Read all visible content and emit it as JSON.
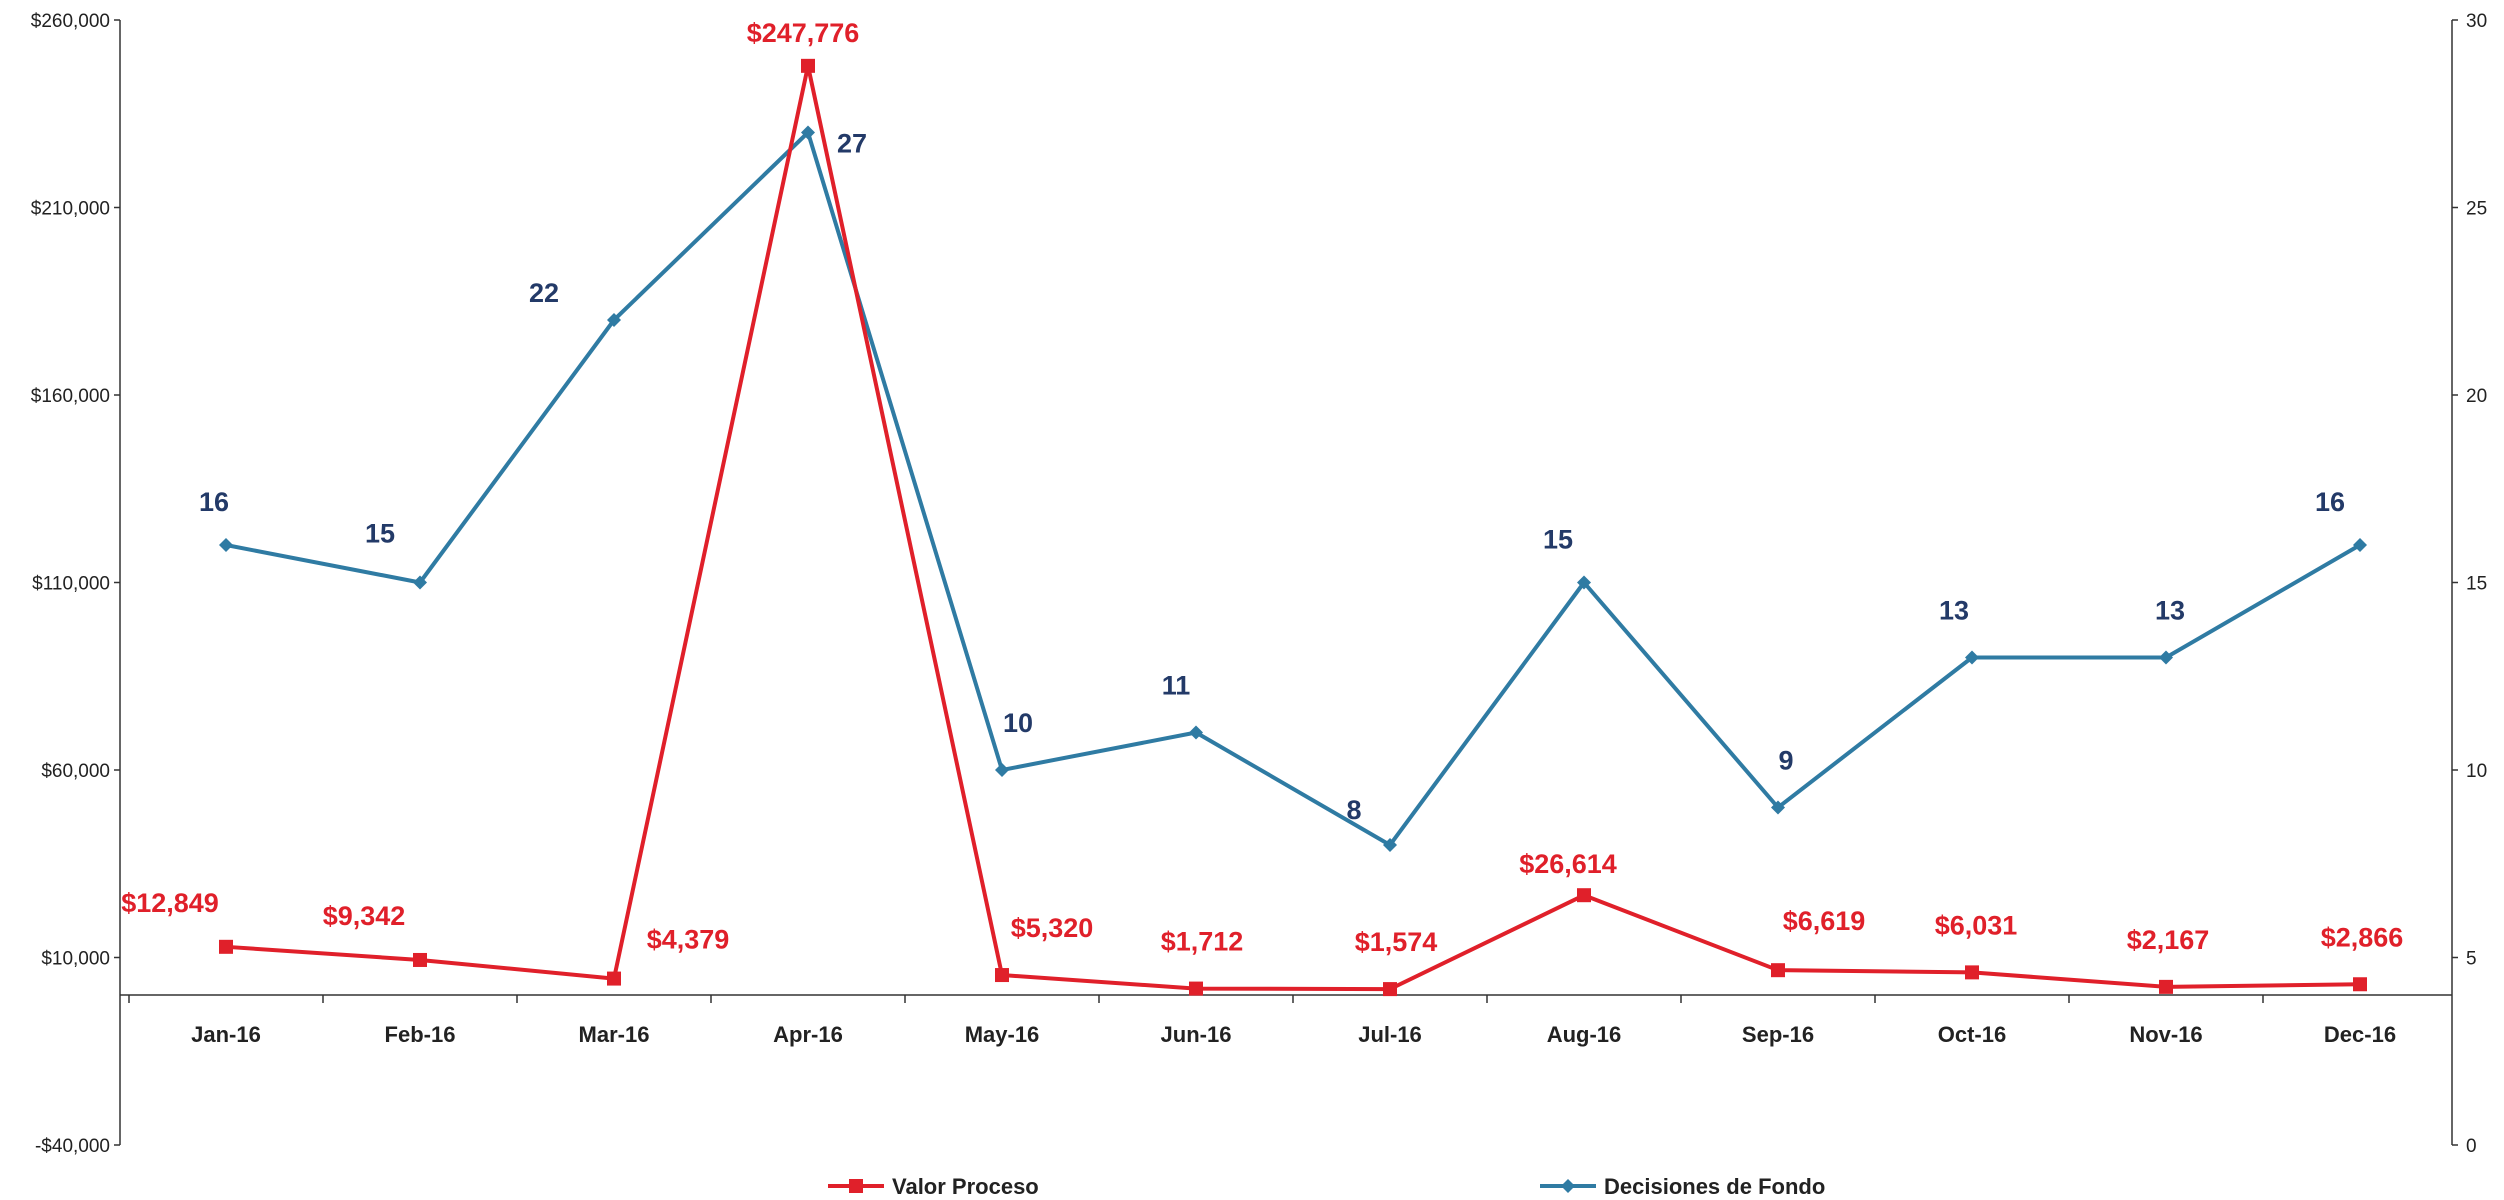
{
  "chart_data": {
    "type": "line",
    "categories": [
      "Jan-16",
      "Feb-16",
      "Mar-16",
      "Apr-16",
      "May-16",
      "Jun-16",
      "Jul-16",
      "Aug-16",
      "Sep-16",
      "Oct-16",
      "Nov-16",
      "Dec-16"
    ],
    "y_left": {
      "range": [
        -40000,
        260000
      ],
      "ticks": [
        -40000,
        10000,
        60000,
        110000,
        160000,
        210000,
        260000
      ],
      "tick_labels": [
        "-$40,000",
        "$10,000",
        "$60,000",
        "$110,000",
        "$160,000",
        "$210,000",
        "$260,000"
      ]
    },
    "y_right": {
      "range": [
        0,
        30
      ],
      "ticks": [
        0,
        5,
        10,
        15,
        20,
        25,
        30
      ],
      "tick_labels": [
        "0",
        "5",
        "10",
        "15",
        "20",
        "25",
        "30"
      ]
    },
    "series": [
      {
        "name": "Valor Proceso",
        "axis": "left",
        "color": "#e0202a",
        "marker": "square",
        "values": [
          12849,
          9342,
          4379,
          247776,
          5320,
          1712,
          1574,
          26614,
          6619,
          6031,
          2167,
          2866
        ],
        "labels": [
          "$12,849",
          "$9,342",
          "$4,379",
          "$247,776",
          "$5,320",
          "$1,712",
          "$1,574",
          "$26,614",
          "$6,619",
          "$6,031",
          "$2,167",
          "$2,866"
        ]
      },
      {
        "name": "Decisiones de Fondo",
        "axis": "right",
        "color": "#2f7ba3",
        "label_color": "#233a68",
        "marker": "diamond",
        "values": [
          16,
          15,
          22,
          27,
          10,
          11,
          8,
          15,
          9,
          13,
          13,
          16
        ],
        "labels": [
          "16",
          "15",
          "22",
          "27",
          "10",
          "11",
          "8",
          "15",
          "9",
          "13",
          "13",
          "16"
        ]
      }
    ],
    "legend_position": "bottom",
    "grid": false
  }
}
